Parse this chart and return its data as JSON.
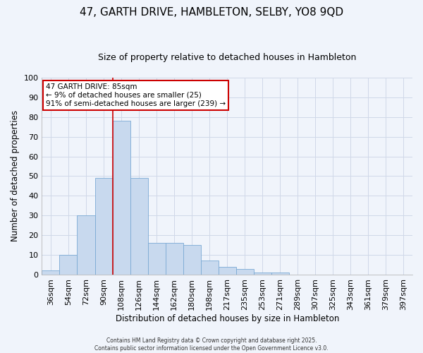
{
  "title": "47, GARTH DRIVE, HAMBLETON, SELBY, YO8 9QD",
  "subtitle": "Size of property relative to detached houses in Hambleton",
  "xlabel": "Distribution of detached houses by size in Hambleton",
  "ylabel": "Number of detached properties",
  "bar_color": "#c8d9ee",
  "bar_edge_color": "#7baad4",
  "background_color": "#f0f4fb",
  "plot_bg_color": "#f0f4fb",
  "grid_color": "#d0d8e8",
  "categories": [
    "36sqm",
    "54sqm",
    "72sqm",
    "90sqm",
    "108sqm",
    "126sqm",
    "144sqm",
    "162sqm",
    "180sqm",
    "198sqm",
    "217sqm",
    "235sqm",
    "253sqm",
    "271sqm",
    "289sqm",
    "307sqm",
    "325sqm",
    "343sqm",
    "361sqm",
    "379sqm",
    "397sqm"
  ],
  "values": [
    2,
    10,
    30,
    49,
    78,
    49,
    16,
    16,
    15,
    7,
    4,
    3,
    1,
    1,
    0,
    0,
    0,
    0,
    0,
    0,
    0
  ],
  "ylim": [
    0,
    100
  ],
  "yticks": [
    0,
    10,
    20,
    30,
    40,
    50,
    60,
    70,
    80,
    90,
    100
  ],
  "red_line_index": 3,
  "annotation_text": "47 GARTH DRIVE: 85sqm\n← 9% of detached houses are smaller (25)\n91% of semi-detached houses are larger (239) →",
  "annotation_box_color": "#ffffff",
  "annotation_box_edge": "#cc0000",
  "red_line_color": "#cc0000",
  "title_fontsize": 11,
  "subtitle_fontsize": 9,
  "footer_line1": "Contains HM Land Registry data © Crown copyright and database right 2025.",
  "footer_line2": "Contains public sector information licensed under the Open Government Licence v3.0."
}
